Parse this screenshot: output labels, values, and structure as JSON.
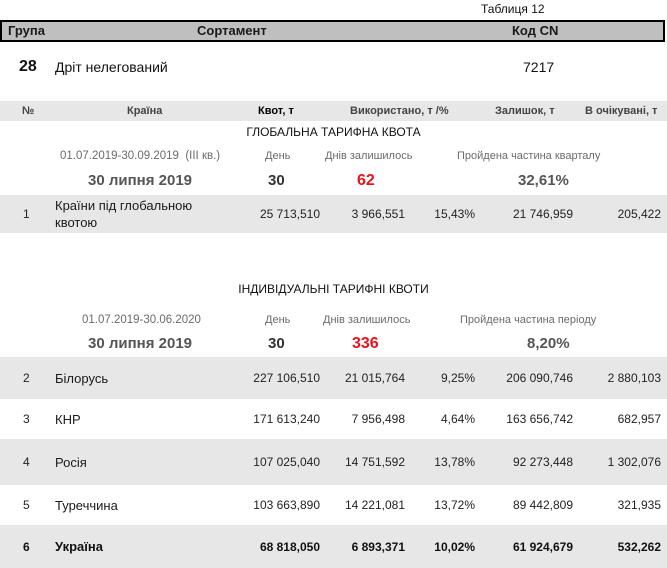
{
  "colors": {
    "header_bar": "#bfbfbf",
    "band": "#e7e7e7",
    "days_left": "#e8141c",
    "muted_text": "#6b6b6b",
    "date_text": "#555555"
  },
  "table_caption": "Таблиця 12",
  "header": {
    "group": "Група",
    "assortment": "Сортамент",
    "cn_code": "Код CN"
  },
  "product": {
    "group": "28",
    "name": "Дріт нелегований",
    "cn_code": "7217"
  },
  "columns": {
    "no": "№",
    "country": "Країна",
    "quota": "Квот, т",
    "used": "Використано, т /%",
    "remaining": "Залишок, т",
    "pending": "В очікувані, т"
  },
  "global_quota": {
    "title": "ГЛОБАЛЬНА ТАРИФНА КВОТА",
    "period": "01.07.2019-30.09.2019  (III кв.)",
    "day_label": "День",
    "days_left_label": "Днів залишилось",
    "passed_label": "Пройдена частина кварталу",
    "date": "30 липня 2019",
    "day": "30",
    "days_left": "62",
    "passed": "32,61%",
    "rows": [
      {
        "no": "1",
        "country": "Країни під глобальною квотою",
        "quota": "25 713,510",
        "used": "3 966,551",
        "used_pct": "15,43%",
        "remaining": "21 746,959",
        "pending": "205,422"
      }
    ]
  },
  "individual_quotas": {
    "title": "ІНДИВІДУАЛЬНІ ТАРИФНІ КВОТИ",
    "period": "01.07.2019-30.06.2020",
    "day_label": "День",
    "days_left_label": "Днів залишилось",
    "passed_label": "Пройдена частина періоду",
    "date": "30 липня 2019",
    "day": "30",
    "days_left": "336",
    "passed": "8,20%",
    "rows": [
      {
        "no": "2",
        "country": "Білорусь",
        "quota": "227 106,510",
        "used": "21 015,764",
        "used_pct": "9,25%",
        "remaining": "206 090,746",
        "pending": "2 880,103"
      },
      {
        "no": "3",
        "country": "КНР",
        "quota": "171 613,240",
        "used": "7 956,498",
        "used_pct": "4,64%",
        "remaining": "163 656,742",
        "pending": "682,957"
      },
      {
        "no": "4",
        "country": "Росія",
        "quota": "107 025,040",
        "used": "14 751,592",
        "used_pct": "13,78%",
        "remaining": "92 273,448",
        "pending": "1 302,076"
      },
      {
        "no": "5",
        "country": "Туреччина",
        "quota": "103 663,890",
        "used": "14 221,081",
        "used_pct": "13,72%",
        "remaining": "89 442,809",
        "pending": "321,935"
      },
      {
        "no": "6",
        "country": "Україна",
        "quota": "68 818,050",
        "used": "6 893,371",
        "used_pct": "10,02%",
        "remaining": "61 924,679",
        "pending": "532,262"
      }
    ]
  }
}
